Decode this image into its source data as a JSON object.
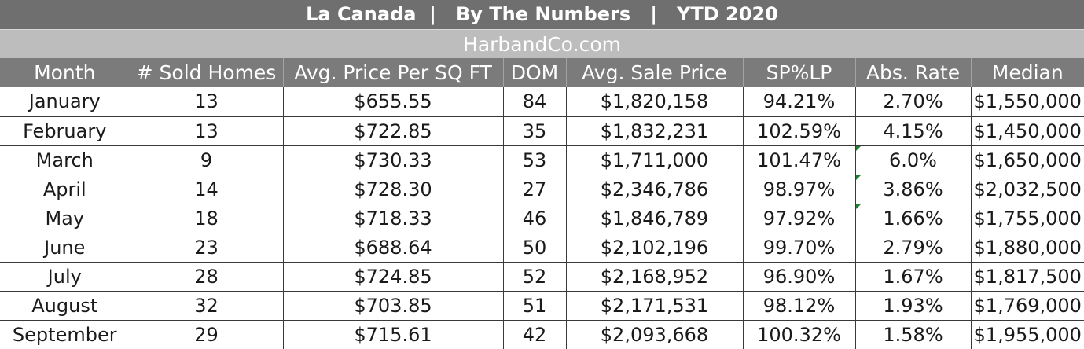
{
  "title": "La Canada  |   By The Numbers   |   YTD 2020",
  "subtitle": "HarbandCo.com",
  "columns": [
    "Month",
    "# Sold Homes",
    "Avg. Price Per SQ FT",
    "DOM",
    "Avg. Sale Price",
    "SP%LP",
    "Abs. Rate",
    "Median"
  ],
  "rows": [
    [
      "January",
      "13",
      "$655.55",
      "84",
      "$1,820,158",
      "94.21%",
      "2.70%",
      "$1,550,000"
    ],
    [
      "February",
      "13",
      "$722.85",
      "35",
      "$1,832,231",
      "102.59%",
      "4.15%",
      "$1,450,000"
    ],
    [
      "March",
      "9",
      "$730.33",
      "53",
      "$1,711,000",
      "101.47%",
      "6.0%",
      "$1,650,000"
    ],
    [
      "April",
      "14",
      "$728.30",
      "27",
      "$2,346,786",
      "98.97%",
      "3.86%",
      "$2,032,500"
    ],
    [
      "May",
      "18",
      "$718.33",
      "46",
      "$1,846,789",
      "97.92%",
      "1.66%",
      "$1,755,000"
    ],
    [
      "June",
      "23",
      "$688.64",
      "50",
      "$2,102,196",
      "99.70%",
      "2.79%",
      "$1,880,000"
    ],
    [
      "July",
      "28",
      "$724.85",
      "52",
      "$2,168,952",
      "96.90%",
      "1.67%",
      "$1,817,500"
    ],
    [
      "August",
      "32",
      "$703.85",
      "51",
      "$2,171,531",
      "98.12%",
      "1.93%",
      "$1,769,000"
    ],
    [
      "September",
      "29",
      "$715.61",
      "42",
      "$2,093,668",
      "100.32%",
      "1.58%",
      "$1,955,000"
    ]
  ],
  "colors": {
    "title_bg": "#6f6f6f",
    "subtitle_bg": "#bdbdbd",
    "header_bg": "#7b7b7b",
    "grid_line": "#3a3a3a",
    "comment_marker": "#1f7a34"
  }
}
